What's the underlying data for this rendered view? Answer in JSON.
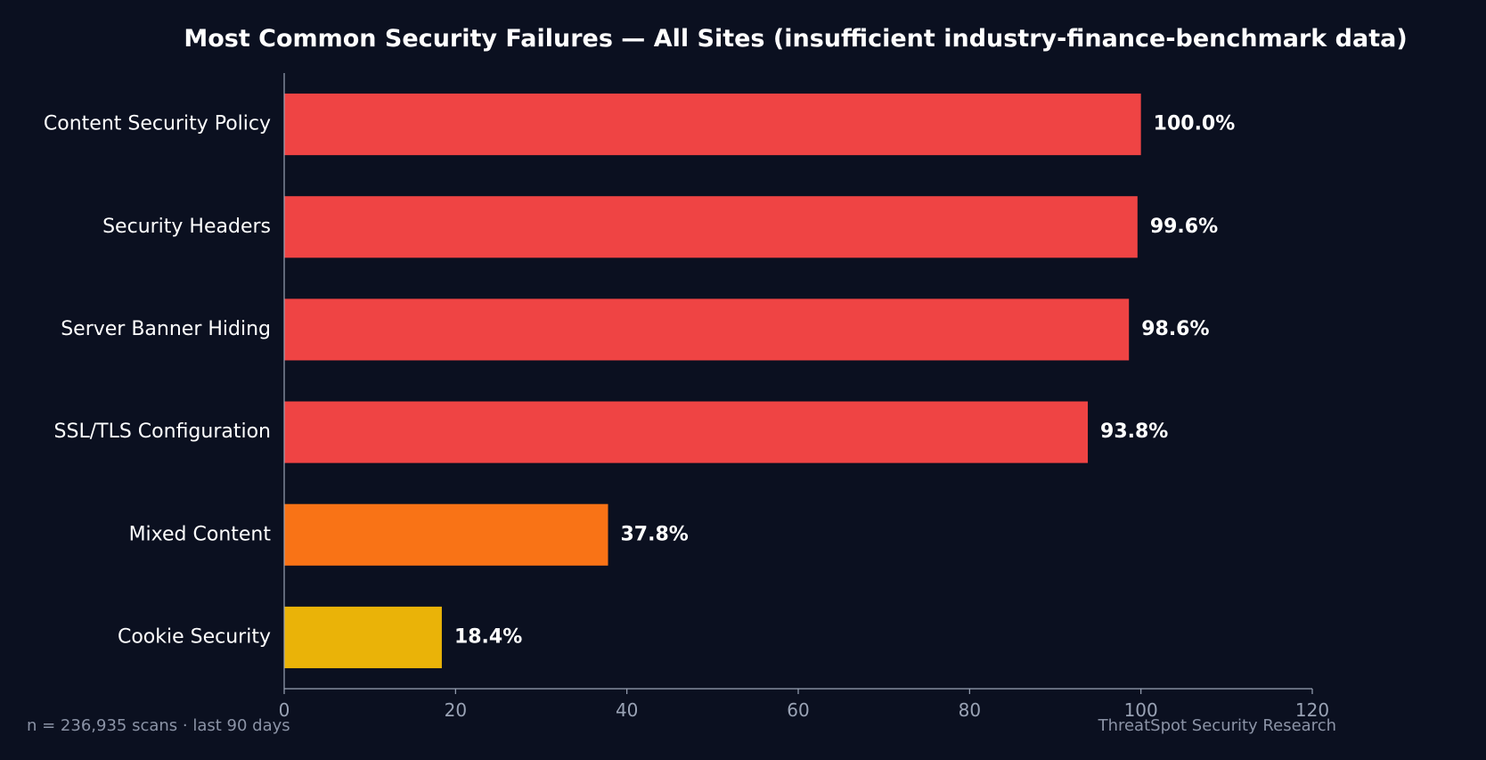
{
  "chart_data": {
    "type": "bar",
    "orientation": "horizontal",
    "title": "Most Common Security Failures — All Sites (insufficient industry-finance-benchmark data)",
    "categories": [
      "Content Security Policy",
      "Security Headers",
      "Server Banner Hiding",
      "SSL/TLS Configuration",
      "Mixed Content",
      "Cookie Security"
    ],
    "values": [
      100.0,
      99.6,
      98.6,
      93.8,
      37.8,
      18.4
    ],
    "value_labels": [
      "100.0%",
      "99.6%",
      "98.6%",
      "93.8%",
      "37.8%",
      "18.4%"
    ],
    "bar_colors": [
      "#ef4444",
      "#ef4444",
      "#ef4444",
      "#ef4444",
      "#f97316",
      "#eab308"
    ],
    "xlim": [
      0,
      120
    ],
    "xticks": [
      0,
      20,
      40,
      60,
      80,
      100,
      120
    ],
    "grid": false,
    "legend": "none"
  },
  "footer": {
    "left": "n = 236,935 scans · last 90 days",
    "right": "ThreatSpot Security Research"
  },
  "colors": {
    "background": "#0b1020",
    "axis": "#9aa3b5",
    "text": "#ffffff"
  }
}
